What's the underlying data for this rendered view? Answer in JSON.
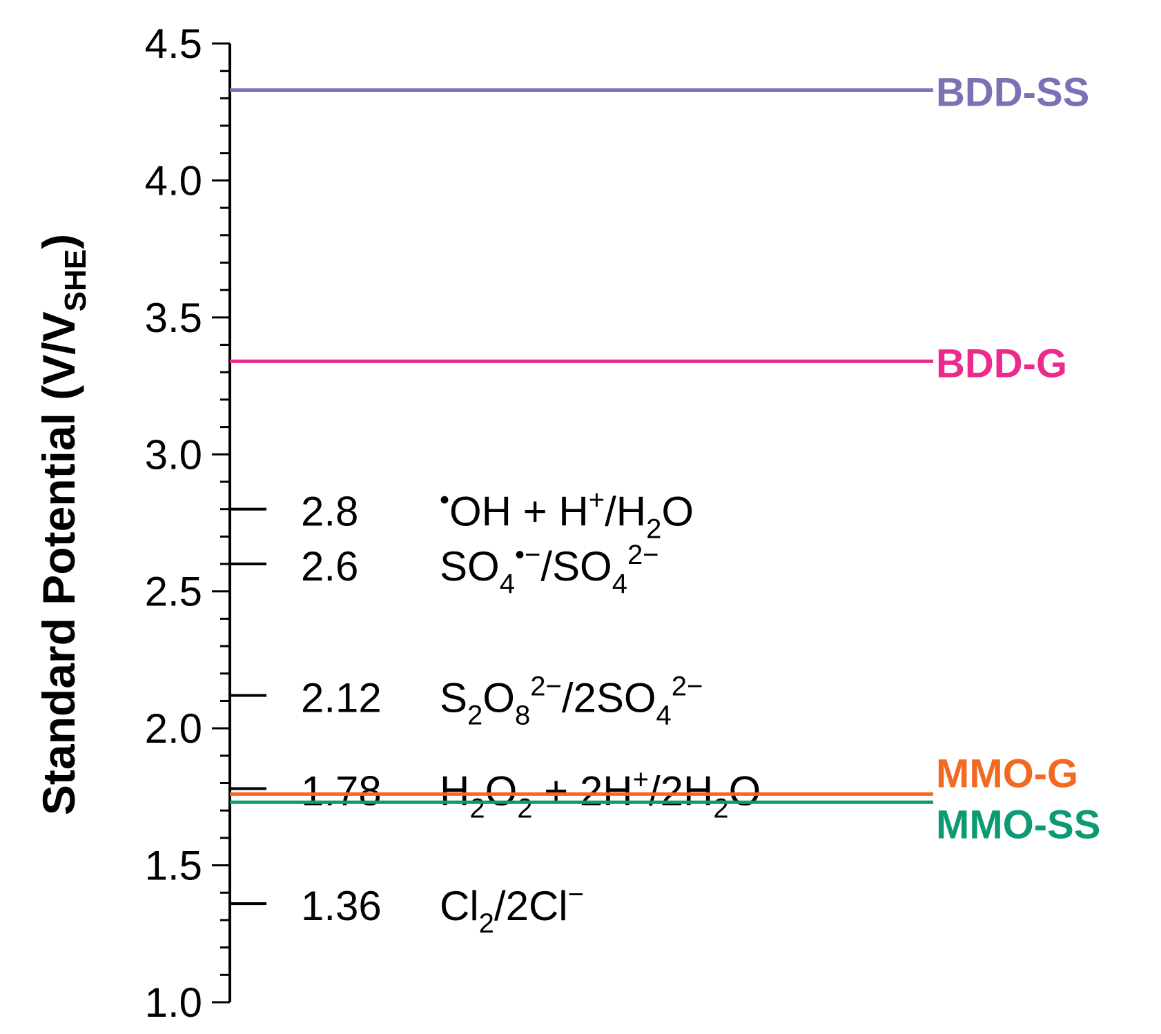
{
  "chart_data": {
    "type": "line",
    "ylabel": "Standard Potential (V/V",
    "ylabel_sub": "SHE",
    "ylabel_close": ")",
    "ylim": [
      1.0,
      4.5
    ],
    "yticks": [
      "1.0",
      "1.5",
      "2.0",
      "2.5",
      "3.0",
      "3.5",
      "4.0",
      "4.5"
    ],
    "minor_step": 0.1,
    "reference_potentials": [
      {
        "value": 2.8,
        "label": "2.8",
        "reaction": [
          [
            "•",
            "sup"
          ],
          [
            "OH + H",
            "n"
          ],
          [
            "+",
            "sup"
          ],
          [
            "/H",
            "n"
          ],
          [
            "2",
            "sub"
          ],
          [
            "O",
            "n"
          ]
        ]
      },
      {
        "value": 2.6,
        "label": "2.6",
        "reaction": [
          [
            "SO",
            "n"
          ],
          [
            "4",
            "sub"
          ],
          [
            "•−",
            "sup"
          ],
          [
            "/SO",
            "n"
          ],
          [
            "4",
            "sub"
          ],
          [
            "2−",
            "sup"
          ]
        ]
      },
      {
        "value": 2.12,
        "label": "2.12",
        "reaction": [
          [
            "S",
            "n"
          ],
          [
            "2",
            "sub"
          ],
          [
            "O",
            "n"
          ],
          [
            "8",
            "sub"
          ],
          [
            "2−",
            "sup"
          ],
          [
            "/2SO",
            "n"
          ],
          [
            "4",
            "sub"
          ],
          [
            "2−",
            "sup"
          ]
        ]
      },
      {
        "value": 1.78,
        "label": "1.78",
        "reaction": [
          [
            "H",
            "n"
          ],
          [
            "2",
            "sub"
          ],
          [
            "O",
            "n"
          ],
          [
            "2",
            "sub"
          ],
          [
            " + 2H",
            "n"
          ],
          [
            "+",
            "sup"
          ],
          [
            "/2H",
            "n"
          ],
          [
            "2",
            "sub"
          ],
          [
            "O",
            "n"
          ]
        ]
      },
      {
        "value": 1.36,
        "label": "1.36",
        "reaction": [
          [
            "Cl",
            "n"
          ],
          [
            "2",
            "sub"
          ],
          [
            "/2Cl",
            "n"
          ],
          [
            "−",
            "sup"
          ]
        ]
      }
    ],
    "series": [
      {
        "name": "BDD-SS",
        "value": 4.33,
        "color": "#7b72b4"
      },
      {
        "name": "BDD-G",
        "value": 3.34,
        "color": "#ec2a8c"
      },
      {
        "name": "MMO-G",
        "value": 1.76,
        "color": "#f26922"
      },
      {
        "name": "MMO-SS",
        "value": 1.73,
        "color": "#0c9a74"
      }
    ]
  }
}
